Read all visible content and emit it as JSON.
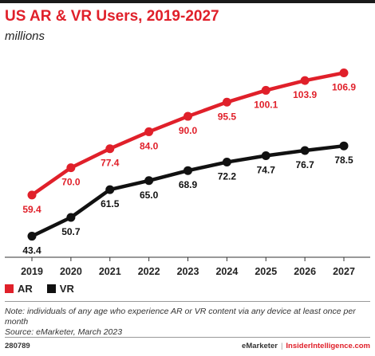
{
  "header": {
    "title": "US AR & VR Users, 2019-2027",
    "subtitle": "millions"
  },
  "chart_data": {
    "type": "line",
    "categories": [
      "2019",
      "2020",
      "2021",
      "2022",
      "2023",
      "2024",
      "2025",
      "2026",
      "2027"
    ],
    "series": [
      {
        "name": "AR",
        "color": "#e0202a",
        "values": [
          59.4,
          70.0,
          77.4,
          84.0,
          90.0,
          95.5,
          100.1,
          103.9,
          106.9
        ],
        "labels": [
          "59.4",
          "70.0",
          "77.4",
          "84.0",
          "90.0",
          "95.5",
          "100.1",
          "103.9",
          "106.9"
        ]
      },
      {
        "name": "VR",
        "color": "#111111",
        "values": [
          43.4,
          50.7,
          61.5,
          65.0,
          68.9,
          72.2,
          74.7,
          76.7,
          78.5
        ],
        "labels": [
          "43.4",
          "50.7",
          "61.5",
          "65.0",
          "68.9",
          "72.2",
          "74.7",
          "76.7",
          "78.5"
        ]
      }
    ],
    "ylim": [
      38,
      112
    ],
    "grid": false,
    "legend_placement": "bottom-left"
  },
  "legend": {
    "items": [
      {
        "label": "AR",
        "color": "#e0202a"
      },
      {
        "label": "VR",
        "color": "#111111"
      }
    ]
  },
  "note": {
    "text": "Note: individuals of any age who experience AR or VR content via any device at least once per month",
    "source": "Source: eMarketer, March 2023"
  },
  "footer": {
    "id": "280789",
    "brand": "eMarketer",
    "separator": "|",
    "brand2": "InsiderIntelligence.com"
  }
}
